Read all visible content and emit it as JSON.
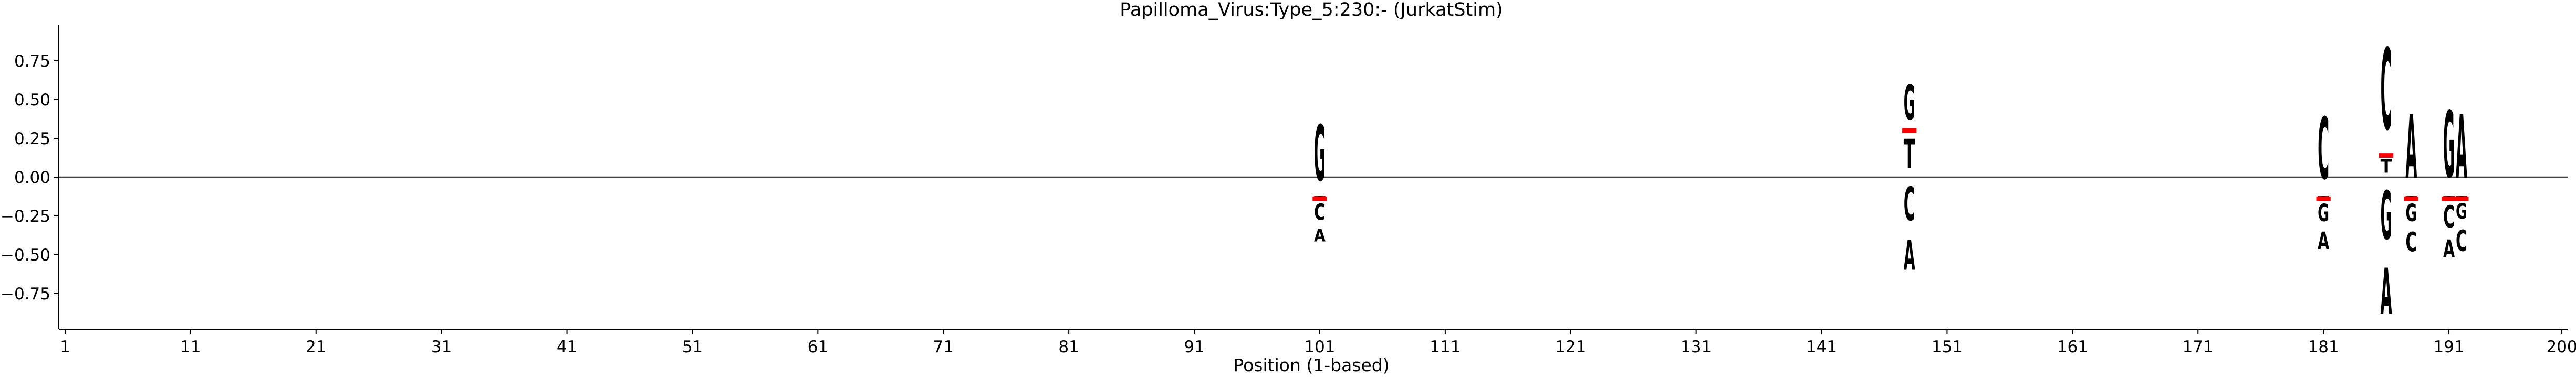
{
  "chart_data": {
    "type": "sequence-logo",
    "title": "Papilloma_Virus:Type_5:230:-  (JurkatStim)",
    "xlabel": "Position (1-based)",
    "ylabel": "",
    "xlim": [
      0.5,
      200.5
    ],
    "ylim": [
      -0.98,
      0.98
    ],
    "x_ticks": [
      1,
      11,
      21,
      31,
      41,
      51,
      61,
      71,
      81,
      91,
      101,
      111,
      121,
      131,
      141,
      151,
      161,
      171,
      181,
      191,
      200
    ],
    "y_ticks": [
      0.75,
      0.5,
      0.25,
      0.0,
      -0.25,
      -0.5,
      -0.75
    ],
    "y_tick_labels": [
      "0.75",
      "0.50",
      "0.25",
      "0.00",
      "−0.25",
      "−0.50",
      "−0.75"
    ],
    "letter_colors": {
      "A": "#008000",
      "C": "#0000ff",
      "G": "#ffa500",
      "T": "#ff0000"
    },
    "positions": [
      {
        "x": 101,
        "ref": -0.14,
        "stacks": [
          {
            "letter": "G",
            "bottom": -0.14,
            "top": 0.44
          },
          {
            "letter": "T",
            "bottom": -0.14,
            "top": -0.12
          },
          {
            "letter": "C",
            "bottom": -0.31,
            "top": -0.14
          },
          {
            "letter": "A",
            "bottom": -0.44,
            "top": -0.31
          }
        ]
      },
      {
        "x": 148,
        "ref": 0.3,
        "stacks": [
          {
            "letter": "G",
            "bottom": 0.3,
            "top": 0.66
          },
          {
            "letter": "T",
            "bottom": 0.0,
            "top": 0.3
          },
          {
            "letter": "C",
            "bottom": -0.35,
            "top": 0.0
          },
          {
            "letter": "A",
            "bottom": -0.66,
            "top": -0.35
          }
        ]
      },
      {
        "x": 181,
        "ref": -0.14,
        "stacks": [
          {
            "letter": "C",
            "bottom": -0.14,
            "top": 0.5
          },
          {
            "letter": "T",
            "bottom": -0.14,
            "top": -0.12
          },
          {
            "letter": "G",
            "bottom": -0.32,
            "top": -0.14
          },
          {
            "letter": "A",
            "bottom": -0.5,
            "top": -0.32
          }
        ]
      },
      {
        "x": 186,
        "ref": 0.14,
        "stacks": [
          {
            "letter": "C",
            "bottom": 0.14,
            "top": 0.98
          },
          {
            "letter": "T",
            "bottom": 0.0,
            "top": 0.14
          },
          {
            "letter": "G",
            "bottom": -0.5,
            "top": 0.0
          },
          {
            "letter": "A",
            "bottom": -0.98,
            "top": -0.5
          }
        ]
      },
      {
        "x": 188,
        "ref": -0.14,
        "stacks": [
          {
            "letter": "A",
            "bottom": -0.14,
            "top": 0.52
          },
          {
            "letter": "T",
            "bottom": -0.14,
            "top": -0.12
          },
          {
            "letter": "G",
            "bottom": -0.32,
            "top": -0.14
          },
          {
            "letter": "C",
            "bottom": -0.52,
            "top": -0.32
          }
        ]
      },
      {
        "x": 191,
        "ref": -0.14,
        "stacks": [
          {
            "letter": "G",
            "bottom": -0.14,
            "top": 0.55
          },
          {
            "letter": "T",
            "bottom": -0.14,
            "top": -0.12
          },
          {
            "letter": "C",
            "bottom": -0.37,
            "top": -0.14
          },
          {
            "letter": "A",
            "bottom": -0.55,
            "top": -0.37
          }
        ]
      },
      {
        "x": 192,
        "ref": -0.14,
        "stacks": [
          {
            "letter": "A",
            "bottom": -0.14,
            "top": 0.52
          },
          {
            "letter": "T",
            "bottom": -0.14,
            "top": -0.12
          },
          {
            "letter": "G",
            "bottom": -0.3,
            "top": -0.14
          },
          {
            "letter": "C",
            "bottom": -0.52,
            "top": -0.3
          }
        ]
      }
    ]
  }
}
